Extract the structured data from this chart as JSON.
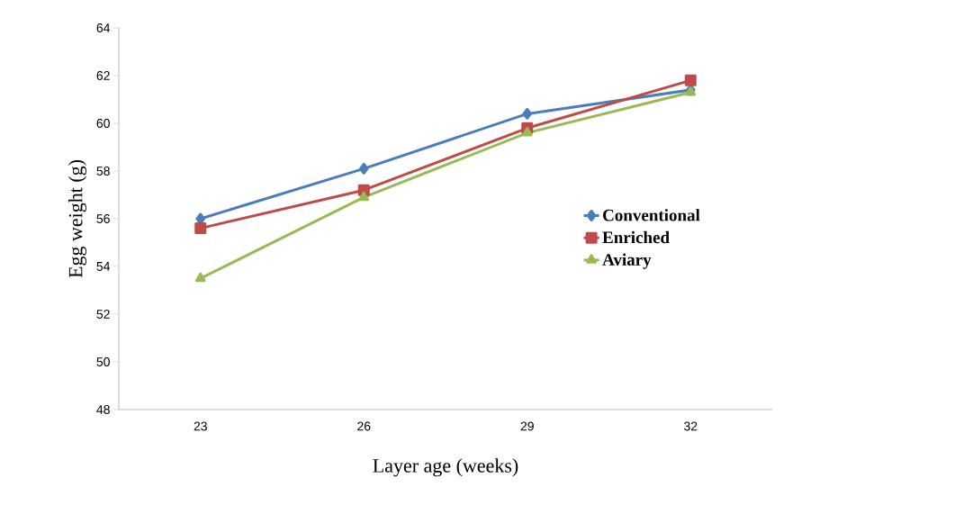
{
  "chart_data": {
    "type": "line",
    "xlabel": "Layer age (weeks)",
    "ylabel": "Egg weight (g)",
    "categories": [
      "23",
      "26",
      "29",
      "32"
    ],
    "series": [
      {
        "name": "Conventional",
        "color": "#4a7ebb",
        "marker": "diamond",
        "values": [
          56.0,
          58.1,
          60.4,
          61.4
        ]
      },
      {
        "name": "Enriched",
        "color": "#be4b48",
        "marker": "square",
        "values": [
          55.6,
          57.2,
          59.8,
          61.8
        ]
      },
      {
        "name": "Aviary",
        "color": "#98b954",
        "marker": "triangle",
        "values": [
          53.5,
          56.9,
          59.6,
          61.3
        ]
      }
    ],
    "ylim": [
      48,
      64
    ],
    "yticks": [
      48,
      50,
      52,
      54,
      56,
      58,
      60,
      62,
      64
    ],
    "grid": false,
    "legend": "right",
    "line_style": "solid"
  }
}
